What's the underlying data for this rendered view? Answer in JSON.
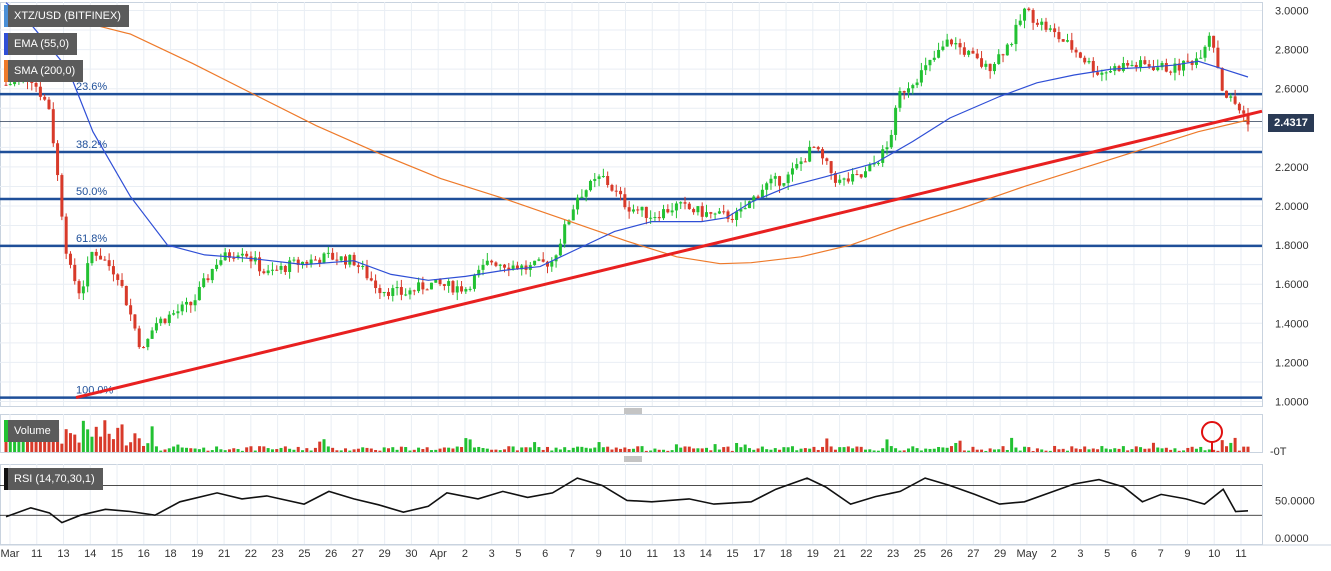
{
  "legend": {
    "pair": "XTZ/USD (BITFINEX)",
    "ema": "EMA (55,0)",
    "sma": "SMA (200,0)",
    "volume": "Volume",
    "rsi": "RSI (14,70,30,1)"
  },
  "colors": {
    "up": "#22c132",
    "down": "#d83a2a",
    "ema": "#2f4fd6",
    "sma": "#ee7a2a",
    "trendline": "#e82020",
    "fib": "#1f4f99",
    "rsi": "#111111",
    "grid": "#e9eef4",
    "price_tag": "#2a3a55"
  },
  "price_tag": "2.4317",
  "chart_data": {
    "type": "candlestick",
    "price_axis": {
      "range": [
        1.0,
        3.0
      ],
      "ticks": [
        "3.0000",
        "2.8000",
        "2.6000",
        "2.4000",
        "2.2000",
        "2.0000",
        "1.8000",
        "1.6000",
        "1.4000",
        "1.2000",
        "1.0000"
      ]
    },
    "volume_axis": {
      "ticks": [
        "-0T"
      ]
    },
    "rsi_axis": {
      "range": [
        0,
        100
      ],
      "ticks": [
        "50.0000",
        "0.0000"
      ],
      "levels": [
        70,
        30
      ]
    },
    "x_axis": {
      "labels": [
        "Mar",
        "11",
        "13",
        "14",
        "15",
        "16",
        "18",
        "19",
        "21",
        "22",
        "23",
        "25",
        "26",
        "27",
        "29",
        "30",
        "Apr",
        "2",
        "3",
        "5",
        "6",
        "7",
        "9",
        "10",
        "11",
        "13",
        "14",
        "15",
        "17",
        "18",
        "19",
        "21",
        "22",
        "23",
        "25",
        "26",
        "27",
        "29",
        "May",
        "2",
        "3",
        "5",
        "6",
        "7",
        "9",
        "10",
        "11"
      ]
    },
    "fib_levels": [
      {
        "label": "23.6%",
        "value": 2.572
      },
      {
        "label": "38.2%",
        "value": 2.276
      },
      {
        "label": "50.0%",
        "value": 2.036
      },
      {
        "label": "61.8%",
        "value": 1.796
      },
      {
        "label": "100.0%",
        "value": 1.02
      }
    ],
    "current_price": 2.4317,
    "trendline": {
      "start": [
        0,
        1.02
      ],
      "end": [
        1,
        2.485
      ]
    },
    "series": [
      {
        "name": "EMA (55,0)",
        "points": [
          [
            0,
            3.04
          ],
          [
            0.02,
            2.93
          ],
          [
            0.05,
            2.7
          ],
          [
            0.07,
            2.38
          ],
          [
            0.1,
            2.05
          ],
          [
            0.13,
            1.8
          ],
          [
            0.16,
            1.75
          ],
          [
            0.2,
            1.73
          ],
          [
            0.24,
            1.7
          ],
          [
            0.28,
            1.72
          ],
          [
            0.31,
            1.65
          ],
          [
            0.34,
            1.62
          ],
          [
            0.37,
            1.64
          ],
          [
            0.4,
            1.67
          ],
          [
            0.43,
            1.69
          ],
          [
            0.46,
            1.78
          ],
          [
            0.49,
            1.87
          ],
          [
            0.52,
            1.92
          ],
          [
            0.56,
            1.92
          ],
          [
            0.58,
            1.94
          ],
          [
            0.6,
            2.02
          ],
          [
            0.63,
            2.1
          ],
          [
            0.66,
            2.15
          ],
          [
            0.7,
            2.22
          ],
          [
            0.73,
            2.33
          ],
          [
            0.76,
            2.45
          ],
          [
            0.8,
            2.56
          ],
          [
            0.83,
            2.63
          ],
          [
            0.86,
            2.67
          ],
          [
            0.89,
            2.7
          ],
          [
            0.92,
            2.71
          ],
          [
            0.94,
            2.72
          ],
          [
            0.96,
            2.74
          ],
          [
            0.98,
            2.7
          ],
          [
            1.0,
            2.66
          ]
        ]
      },
      {
        "name": "SMA (200,0)",
        "points": [
          [
            0.0,
            3.02
          ],
          [
            0.05,
            2.96
          ],
          [
            0.1,
            2.88
          ],
          [
            0.15,
            2.73
          ],
          [
            0.2,
            2.57
          ],
          [
            0.25,
            2.41
          ],
          [
            0.3,
            2.27
          ],
          [
            0.35,
            2.14
          ],
          [
            0.4,
            2.04
          ],
          [
            0.45,
            1.93
          ],
          [
            0.5,
            1.82
          ],
          [
            0.54,
            1.74
          ],
          [
            0.575,
            1.705
          ],
          [
            0.6,
            1.71
          ],
          [
            0.64,
            1.74
          ],
          [
            0.68,
            1.8
          ],
          [
            0.72,
            1.89
          ],
          [
            0.77,
            1.99
          ],
          [
            0.82,
            2.1
          ],
          [
            0.87,
            2.2
          ],
          [
            0.92,
            2.3
          ],
          [
            0.96,
            2.38
          ],
          [
            1.0,
            2.44
          ]
        ]
      },
      {
        "name": "RSI (14,70,30,1)",
        "points": [
          [
            0.0,
            28
          ],
          [
            0.02,
            40
          ],
          [
            0.035,
            33
          ],
          [
            0.045,
            20
          ],
          [
            0.06,
            30
          ],
          [
            0.08,
            38
          ],
          [
            0.1,
            35
          ],
          [
            0.12,
            30
          ],
          [
            0.14,
            48
          ],
          [
            0.17,
            60
          ],
          [
            0.19,
            52
          ],
          [
            0.21,
            56
          ],
          [
            0.24,
            45
          ],
          [
            0.26,
            62
          ],
          [
            0.28,
            52
          ],
          [
            0.3,
            44
          ],
          [
            0.32,
            34
          ],
          [
            0.34,
            42
          ],
          [
            0.355,
            60
          ],
          [
            0.38,
            52
          ],
          [
            0.4,
            62
          ],
          [
            0.42,
            54
          ],
          [
            0.44,
            60
          ],
          [
            0.46,
            80
          ],
          [
            0.48,
            70
          ],
          [
            0.5,
            50
          ],
          [
            0.52,
            48
          ],
          [
            0.55,
            52
          ],
          [
            0.57,
            45
          ],
          [
            0.6,
            48
          ],
          [
            0.62,
            65
          ],
          [
            0.645,
            80
          ],
          [
            0.66,
            68
          ],
          [
            0.68,
            45
          ],
          [
            0.7,
            55
          ],
          [
            0.72,
            62
          ],
          [
            0.74,
            80
          ],
          [
            0.76,
            70
          ],
          [
            0.78,
            58
          ],
          [
            0.8,
            45
          ],
          [
            0.82,
            48
          ],
          [
            0.84,
            60
          ],
          [
            0.86,
            72
          ],
          [
            0.88,
            78
          ],
          [
            0.9,
            68
          ],
          [
            0.915,
            48
          ],
          [
            0.93,
            58
          ],
          [
            0.95,
            52
          ],
          [
            0.965,
            45
          ],
          [
            0.98,
            65
          ],
          [
            0.99,
            35
          ],
          [
            1.0,
            36
          ]
        ]
      }
    ]
  }
}
